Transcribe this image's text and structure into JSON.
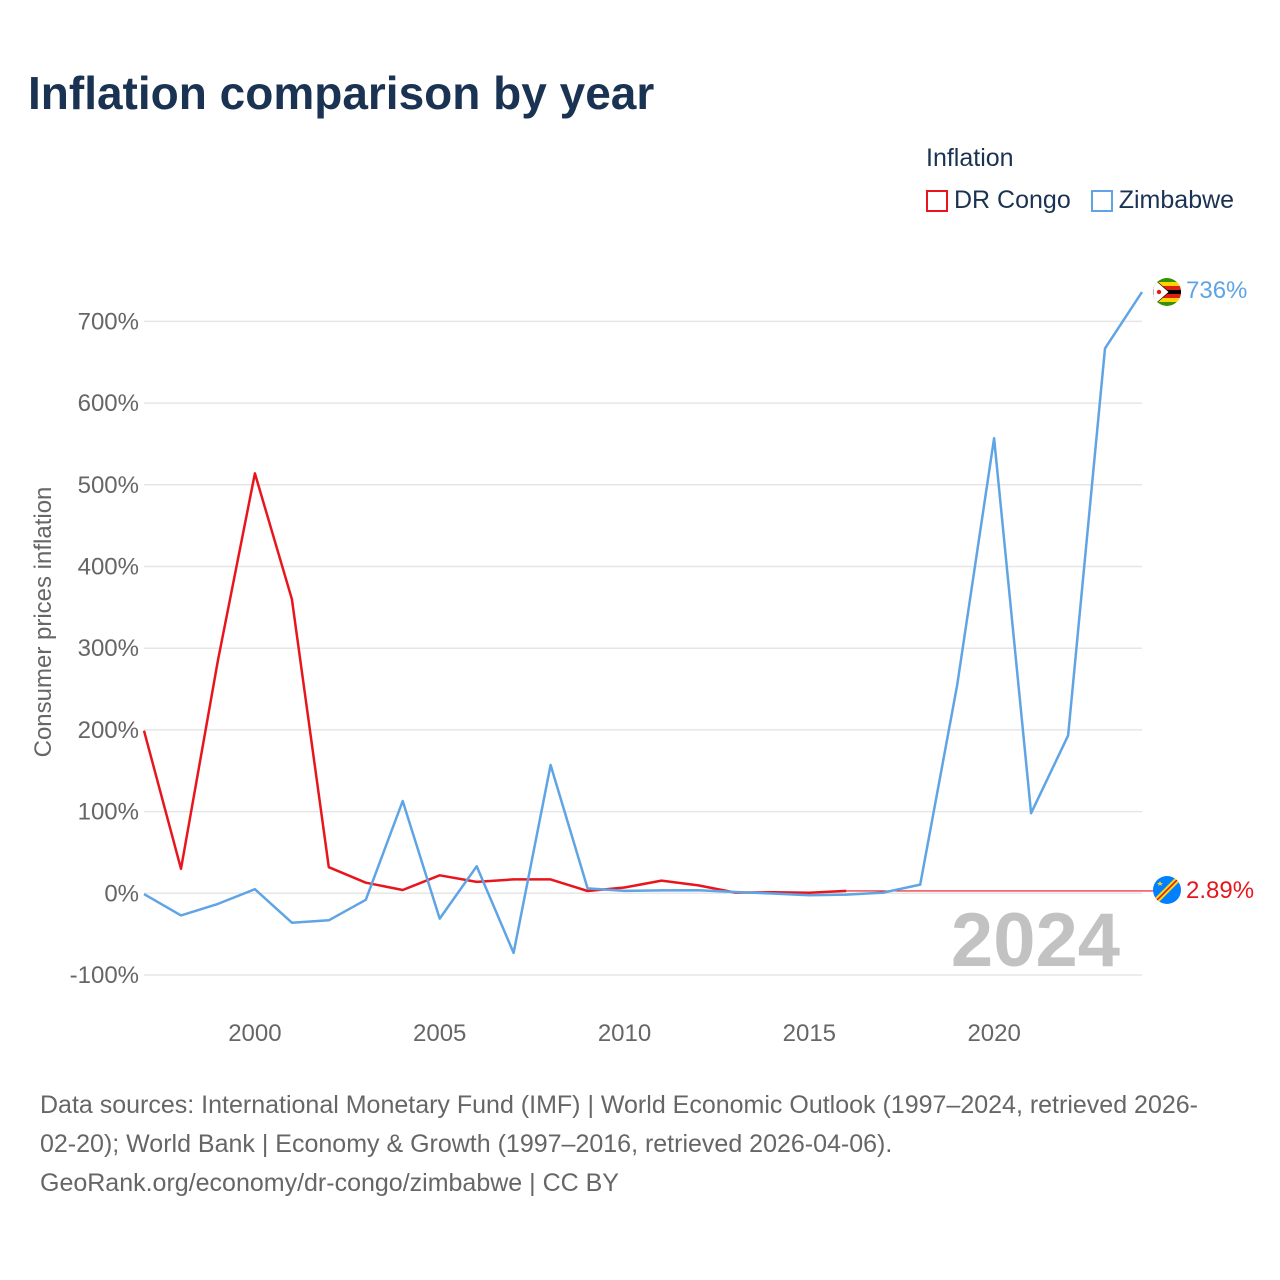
{
  "title": "Inflation comparison by year",
  "legend": {
    "title": "Inflation",
    "items": [
      {
        "label": "DR Congo",
        "color": "#e8161c"
      },
      {
        "label": "Zimbabwe",
        "color": "#5fa4e4"
      }
    ]
  },
  "year_watermark": "2024",
  "end_labels": {
    "zimbabwe": {
      "text": "736%",
      "icon": "zimbabwe-flag-icon"
    },
    "dr_congo": {
      "text": "2.89%",
      "icon": "dr-congo-flag-icon"
    }
  },
  "footer": {
    "line1": "Data sources: International Monetary Fund (IMF) | World Economic Outlook (1997–2024, retrieved 2026-",
    "line2": "02-20); World Bank | Economy & Growth (1997–2016, retrieved 2026-04-06).",
    "line3": "GeoRank.org/economy/dr-congo/zimbabwe | CC BY"
  },
  "chart_data": {
    "type": "line",
    "title": "Inflation comparison by year",
    "xlabel": "",
    "ylabel": "Consumer prices inflation",
    "x": [
      1997,
      1998,
      1999,
      2000,
      2001,
      2002,
      2003,
      2004,
      2005,
      2006,
      2007,
      2008,
      2009,
      2010,
      2011,
      2012,
      2013,
      2014,
      2015,
      2016,
      2017,
      2018,
      2019,
      2020,
      2021,
      2022,
      2023,
      2024
    ],
    "xlim": [
      1997,
      2024
    ],
    "ylim": [
      -100,
      736
    ],
    "x_ticks": [
      2000,
      2005,
      2010,
      2015,
      2020
    ],
    "y_ticks": [
      -100,
      0,
      100,
      200,
      300,
      400,
      500,
      600,
      700
    ],
    "y_tick_labels": [
      "-100%",
      "0%",
      "100%",
      "200%",
      "300%",
      "400%",
      "500%",
      "600%",
      "700%"
    ],
    "series": [
      {
        "name": "DR Congo",
        "color": "#e8161c",
        "values": [
          199,
          30,
          285,
          514,
          360,
          32,
          13,
          4,
          22,
          14,
          17,
          17,
          2.8,
          7.1,
          15.5,
          9.7,
          0.8,
          1.2,
          0.7,
          2.89,
          null,
          null,
          null,
          null,
          null,
          null,
          null,
          null
        ],
        "flat_reference_from": 2016,
        "last_value": 2.89,
        "last_label": "2.89%"
      },
      {
        "name": "Zimbabwe",
        "color": "#5fa4e4",
        "values": [
          -1,
          -27,
          -13,
          5,
          -36,
          -33,
          -8,
          113,
          -31,
          33,
          -73,
          157,
          6,
          3,
          3.5,
          3.7,
          1.6,
          -0.2,
          -2.4,
          -1.6,
          0.9,
          10.6,
          255,
          557,
          98,
          193,
          667,
          736
        ],
        "last_value": 736,
        "last_label": "736%"
      }
    ],
    "grid": true,
    "legend_position": "top-right"
  }
}
